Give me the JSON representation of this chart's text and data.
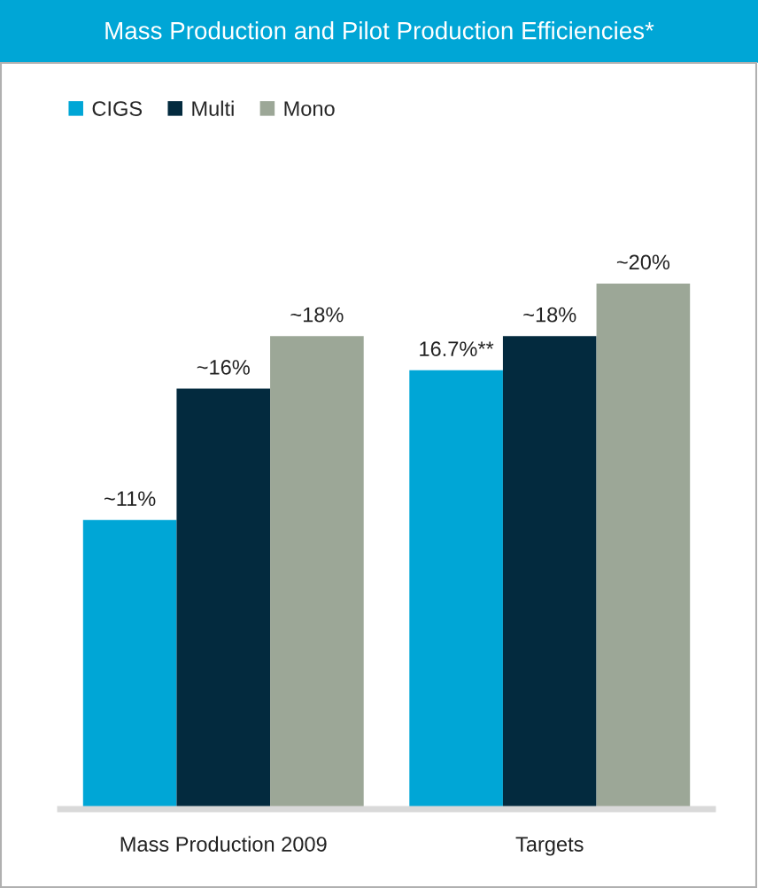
{
  "chart_data": {
    "type": "bar",
    "title": "Mass Production and Pilot Production Efficiencies*",
    "categories": [
      "Mass Production 2009",
      "Targets"
    ],
    "series": [
      {
        "name": "CIGS",
        "color": "#00a6d6",
        "values": [
          11,
          16.7
        ],
        "value_labels": [
          "~11%",
          "16.7%**"
        ]
      },
      {
        "name": "Multi",
        "color": "#032a3e",
        "values": [
          16,
          18
        ],
        "value_labels": [
          "~16%",
          "~18%"
        ]
      },
      {
        "name": "Mono",
        "color": "#9ca797",
        "values": [
          18,
          20
        ],
        "value_labels": [
          "~18%",
          "~20%"
        ]
      }
    ],
    "legend": "top left",
    "grid": false
  }
}
